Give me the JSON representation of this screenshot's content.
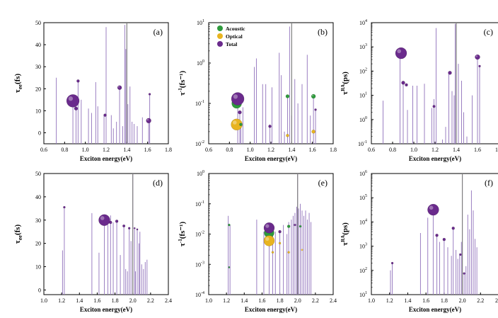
{
  "colors": {
    "stem": "#9b7fc2",
    "total": "#6a2a8c",
    "acoustic": "#2e9a3c",
    "optical": "#e8b420",
    "marker_line": "#808080"
  },
  "chart_data": [
    {
      "type": "scatter",
      "label": "(a)",
      "xlabel": "Exciton energy(eV)",
      "ylabel_main": "τ",
      "ylabel_sub": "ee",
      "ylabel_unit": "(fs)",
      "scale": "linear",
      "xlim": [
        0.6,
        1.8
      ],
      "xticks": [
        "0.6",
        "0.8",
        "1.0",
        "1.2",
        "1.4",
        "1.6",
        "1.8"
      ],
      "ylim": [
        -5,
        50
      ],
      "yticks": [
        "0",
        "10",
        "20",
        "30",
        "40",
        "50"
      ],
      "marker_line_x": 1.4,
      "stems": [
        [
          0.72,
          25
        ],
        [
          0.88,
          13
        ],
        [
          0.91,
          11
        ],
        [
          0.93,
          23
        ],
        [
          0.96,
          15
        ],
        [
          1.03,
          11
        ],
        [
          1.06,
          9
        ],
        [
          1.1,
          23
        ],
        [
          1.12,
          12
        ],
        [
          1.18,
          8
        ],
        [
          1.2,
          48
        ],
        [
          1.25,
          8
        ],
        [
          1.27,
          2
        ],
        [
          1.3,
          5
        ],
        [
          1.33,
          20
        ],
        [
          1.36,
          3
        ],
        [
          1.38,
          49
        ],
        [
          1.39,
          38
        ],
        [
          1.41,
          13
        ],
        [
          1.43,
          21
        ],
        [
          1.45,
          5
        ],
        [
          1.47,
          4
        ],
        [
          1.5,
          3
        ],
        [
          1.55,
          7
        ],
        [
          1.61,
          5
        ],
        [
          1.62,
          17
        ]
      ],
      "bubbles": [
        {
          "x": 0.88,
          "y": 14.5,
          "r": 9,
          "series": "total"
        },
        {
          "x": 0.91,
          "y": 11,
          "r": 2.5,
          "series": "total"
        },
        {
          "x": 0.93,
          "y": 23.5,
          "r": 2,
          "series": "total"
        },
        {
          "x": 1.19,
          "y": 8,
          "r": 2,
          "series": "total"
        },
        {
          "x": 1.33,
          "y": 20.5,
          "r": 3,
          "series": "total"
        },
        {
          "x": 1.61,
          "y": 5.5,
          "r": 3.5,
          "series": "total"
        },
        {
          "x": 1.62,
          "y": 17.5,
          "r": 1.5,
          "series": "total"
        }
      ]
    },
    {
      "type": "scatter",
      "label": "(b)",
      "xlabel": "Exciton energy(eV)",
      "ylabel_main": "τ",
      "ylabel_sup": "-1",
      "ylabel_unit": "(fs⁻¹)",
      "scale": "log",
      "xlim": [
        0.6,
        1.8
      ],
      "xticks": [
        "0.6",
        "0.8",
        "1.0",
        "1.2",
        "1.4",
        "1.6",
        "1.8"
      ],
      "ylim_exp": [
        -2,
        1
      ],
      "yticks": [
        {
          "e": -2,
          "t": "10"
        },
        {
          "e": -1,
          "t": "10"
        },
        {
          "e": 0,
          "t": "10"
        },
        {
          "e": 1,
          "t": "10"
        }
      ],
      "marker_line_x": 1.4,
      "legend": {
        "position": "top-left",
        "entries": [
          {
            "series": "acoustic",
            "label": "Acoustic"
          },
          {
            "series": "optical",
            "label": "Optical"
          },
          {
            "series": "total",
            "label": "Total"
          }
        ]
      },
      "stems": [
        [
          0.88,
          0.12
        ],
        [
          0.9,
          0.06
        ],
        [
          0.91,
          0.03
        ],
        [
          0.93,
          0.08
        ],
        [
          1.04,
          0.8
        ],
        [
          1.06,
          1.3
        ],
        [
          1.12,
          0.3
        ],
        [
          1.15,
          0.3
        ],
        [
          1.19,
          0.03
        ],
        [
          1.21,
          0.25
        ],
        [
          1.28,
          1.8
        ],
        [
          1.3,
          0.5
        ],
        [
          1.33,
          0.02
        ],
        [
          1.36,
          0.15
        ],
        [
          1.38,
          8
        ],
        [
          1.4,
          0.05
        ],
        [
          1.43,
          0.4
        ],
        [
          1.46,
          0.1
        ],
        [
          1.5,
          0.3
        ],
        [
          1.55,
          1.6
        ],
        [
          1.58,
          0.05
        ],
        [
          1.61,
          0.15
        ],
        [
          1.63,
          0.07
        ]
      ],
      "bubbles": [
        {
          "x": 0.87,
          "y": 0.1,
          "r": 7,
          "series": "acoustic"
        },
        {
          "x": 0.87,
          "y": 0.03,
          "r": 8,
          "series": "optical"
        },
        {
          "x": 0.88,
          "y": 0.13,
          "r": 9,
          "series": "total"
        },
        {
          "x": 0.9,
          "y": 0.06,
          "r": 2.5,
          "series": "total"
        },
        {
          "x": 0.91,
          "y": 0.03,
          "r": 2,
          "series": "acoustic"
        },
        {
          "x": 1.19,
          "y": 0.027,
          "r": 2,
          "series": "total"
        },
        {
          "x": 1.36,
          "y": 0.15,
          "r": 2.5,
          "series": "acoustic"
        },
        {
          "x": 1.36,
          "y": 0.016,
          "r": 2,
          "series": "optical"
        },
        {
          "x": 1.61,
          "y": 0.15,
          "r": 3,
          "series": "acoustic"
        },
        {
          "x": 1.61,
          "y": 0.02,
          "r": 2.5,
          "series": "optical"
        },
        {
          "x": 1.63,
          "y": 0.07,
          "r": 1.5,
          "series": "total"
        }
      ]
    },
    {
      "type": "scatter",
      "label": "(c)",
      "xlabel": "Exciton energy(eV)",
      "ylabel_main": "τ",
      "ylabel_sup": "RA",
      "ylabel_unit": "(ps)",
      "scale": "log",
      "xlim": [
        0.6,
        1.8
      ],
      "xticks": [
        "0.6",
        "0.8",
        "1.0",
        "1.2",
        "1.4",
        "1.6",
        "1.8"
      ],
      "ylim_exp": [
        -1,
        4
      ],
      "yticks": [
        {
          "e": -1,
          "t": "10"
        },
        {
          "e": 0,
          "t": "10"
        },
        {
          "e": 1,
          "t": "10"
        },
        {
          "e": 2,
          "t": "10"
        },
        {
          "e": 3,
          "t": "10"
        },
        {
          "e": 4,
          "t": "10"
        }
      ],
      "marker_line_x": 1.4,
      "stems": [
        [
          0.71,
          6
        ],
        [
          0.87,
          580
        ],
        [
          0.9,
          35
        ],
        [
          0.94,
          2.5
        ],
        [
          0.99,
          25
        ],
        [
          1.03,
          25
        ],
        [
          1.1,
          30
        ],
        [
          1.17,
          3
        ],
        [
          1.19,
          7
        ],
        [
          1.21,
          6000
        ],
        [
          1.27,
          0.15
        ],
        [
          1.3,
          0.5
        ],
        [
          1.33,
          90
        ],
        [
          1.36,
          15
        ],
        [
          1.38,
          10
        ],
        [
          1.39,
          9000
        ],
        [
          1.4,
          700
        ],
        [
          1.42,
          200
        ],
        [
          1.45,
          40
        ],
        [
          1.47,
          2
        ],
        [
          1.5,
          0.2
        ],
        [
          1.55,
          10
        ],
        [
          1.6,
          400
        ],
        [
          1.62,
          160
        ]
      ],
      "bubbles": [
        {
          "x": 0.88,
          "y": 550,
          "r": 8,
          "series": "total"
        },
        {
          "x": 0.9,
          "y": 33,
          "r": 2.5,
          "series": "total"
        },
        {
          "x": 0.93,
          "y": 27,
          "r": 2,
          "series": "total"
        },
        {
          "x": 1.19,
          "y": 3.5,
          "r": 1.8,
          "series": "total"
        },
        {
          "x": 1.34,
          "y": 85,
          "r": 2.5,
          "series": "total"
        },
        {
          "x": 1.6,
          "y": 380,
          "r": 3.5,
          "series": "total"
        },
        {
          "x": 1.62,
          "y": 160,
          "r": 1.5,
          "series": "total"
        }
      ]
    },
    {
      "type": "scatter",
      "label": "(d)",
      "xlabel": "Exciton energy(eV)",
      "ylabel_main": "τ",
      "ylabel_sub": "ee",
      "ylabel_unit": "(fs)",
      "scale": "linear",
      "xlim": [
        1.0,
        2.4
      ],
      "xticks": [
        "1.0",
        "1.2",
        "1.4",
        "1.6",
        "1.8",
        "2.0",
        "2.2",
        "2.4"
      ],
      "ylim": [
        -2,
        50
      ],
      "yticks": [
        "0",
        "10",
        "20",
        "30",
        "40",
        "50"
      ],
      "marker_line_x": 2.0,
      "stems": [
        [
          1.21,
          17
        ],
        [
          1.23,
          35
        ],
        [
          1.54,
          33
        ],
        [
          1.62,
          16
        ],
        [
          1.68,
          30
        ],
        [
          1.72,
          28
        ],
        [
          1.75,
          32
        ],
        [
          1.78,
          29
        ],
        [
          1.82,
          29
        ],
        [
          1.86,
          15
        ],
        [
          1.9,
          27
        ],
        [
          1.92,
          9
        ],
        [
          1.94,
          8
        ],
        [
          1.96,
          27
        ],
        [
          1.98,
          21
        ],
        [
          2.0,
          50
        ],
        [
          2.02,
          26
        ],
        [
          2.03,
          8
        ],
        [
          2.05,
          26
        ],
        [
          2.07,
          20
        ],
        [
          2.08,
          25
        ],
        [
          2.1,
          11
        ],
        [
          2.12,
          9
        ],
        [
          2.14,
          12
        ],
        [
          2.16,
          13
        ]
      ],
      "bubbles": [
        {
          "x": 1.23,
          "y": 35.5,
          "r": 1.5,
          "series": "total"
        },
        {
          "x": 1.68,
          "y": 30,
          "r": 8,
          "series": "total"
        },
        {
          "x": 1.75,
          "y": 29,
          "r": 2,
          "series": "total"
        },
        {
          "x": 1.82,
          "y": 29.5,
          "r": 2,
          "series": "total"
        },
        {
          "x": 1.9,
          "y": 27.5,
          "r": 1.8,
          "series": "total"
        },
        {
          "x": 1.96,
          "y": 26.5,
          "r": 1.5,
          "series": "total"
        },
        {
          "x": 2.02,
          "y": 26.5,
          "r": 1.2,
          "series": "total"
        },
        {
          "x": 2.05,
          "y": 26,
          "r": 1.2,
          "series": "total"
        }
      ]
    },
    {
      "type": "scatter",
      "label": "(e)",
      "xlabel": "Exciton energy(eV)",
      "ylabel_main": "τ",
      "ylabel_sup": "-1",
      "ylabel_unit": "(fs⁻¹)",
      "scale": "log",
      "xlim": [
        1.0,
        2.4
      ],
      "xticks": [
        "1.0",
        "1.2",
        "1.4",
        "1.6",
        "1.8",
        "2.0",
        "2.2",
        "2.4"
      ],
      "ylim_exp": [
        -4,
        0
      ],
      "yticks": [
        {
          "e": -4,
          "t": "10"
        },
        {
          "e": -3,
          "t": "10"
        },
        {
          "e": -2,
          "t": "10"
        },
        {
          "e": -1,
          "t": "10"
        },
        {
          "e": 0,
          "t": "10"
        }
      ],
      "marker_line_x": 2.0,
      "stems": [
        [
          1.22,
          0.04
        ],
        [
          1.24,
          0.02
        ],
        [
          1.54,
          0.03
        ],
        [
          1.62,
          0.012
        ],
        [
          1.68,
          0.015
        ],
        [
          1.72,
          0.02
        ],
        [
          1.75,
          0.012
        ],
        [
          1.8,
          0.013
        ],
        [
          1.84,
          0.02
        ],
        [
          1.88,
          0.01
        ],
        [
          1.9,
          0.025
        ],
        [
          1.93,
          0.03
        ],
        [
          1.95,
          0.04
        ],
        [
          1.97,
          0.05
        ],
        [
          1.99,
          0.08
        ],
        [
          2.0,
          1.0
        ],
        [
          2.01,
          0.07
        ],
        [
          2.03,
          0.1
        ],
        [
          2.05,
          0.06
        ],
        [
          2.07,
          0.04
        ],
        [
          2.09,
          0.06
        ],
        [
          2.11,
          0.03
        ],
        [
          2.13,
          0.05
        ],
        [
          2.15,
          0.025
        ]
      ],
      "bubbles": [
        {
          "x": 1.23,
          "y": 0.02,
          "r": 1.5,
          "series": "acoustic"
        },
        {
          "x": 1.23,
          "y": 0.0008,
          "r": 1.2,
          "series": "acoustic"
        },
        {
          "x": 1.68,
          "y": 0.011,
          "r": 7,
          "series": "acoustic"
        },
        {
          "x": 1.68,
          "y": 0.006,
          "r": 7.5,
          "series": "optical"
        },
        {
          "x": 1.68,
          "y": 0.016,
          "r": 7.5,
          "series": "total"
        },
        {
          "x": 1.72,
          "y": 0.0025,
          "r": 1.5,
          "series": "optical"
        },
        {
          "x": 1.8,
          "y": 0.012,
          "r": 2,
          "series": "total"
        },
        {
          "x": 1.8,
          "y": 0.005,
          "r": 1.5,
          "series": "optical"
        },
        {
          "x": 1.9,
          "y": 0.018,
          "r": 2,
          "series": "acoustic"
        },
        {
          "x": 1.9,
          "y": 0.0025,
          "r": 1.5,
          "series": "optical"
        },
        {
          "x": 1.97,
          "y": 0.02,
          "r": 1.5,
          "series": "total"
        },
        {
          "x": 2.03,
          "y": 0.018,
          "r": 1.5,
          "series": "acoustic"
        },
        {
          "x": 2.05,
          "y": 0.003,
          "r": 1.2,
          "series": "optical"
        }
      ]
    },
    {
      "type": "scatter",
      "label": "(f)",
      "xlabel": "Exciton energy(eV)",
      "ylabel_main": "τ",
      "ylabel_sup": "RA",
      "ylabel_unit": "(ps)",
      "scale": "log",
      "xlim": [
        1.0,
        2.4
      ],
      "xticks": [
        "1.0",
        "1.2",
        "1.4",
        "1.6",
        "1.8",
        "2.0",
        "2.2",
        "2.4"
      ],
      "ylim_exp": [
        1,
        6
      ],
      "yticks": [
        {
          "e": 1,
          "t": "10"
        },
        {
          "e": 2,
          "t": "10"
        },
        {
          "e": 3,
          "t": "10"
        },
        {
          "e": 4,
          "t": "10"
        },
        {
          "e": 5,
          "t": "10"
        },
        {
          "e": 6,
          "t": "10"
        }
      ],
      "marker_line_x": 2.0,
      "stems": [
        [
          1.21,
          100
        ],
        [
          1.23,
          200
        ],
        [
          1.54,
          3500
        ],
        [
          1.62,
          15000
        ],
        [
          1.68,
          30000
        ],
        [
          1.72,
          2800
        ],
        [
          1.75,
          1500
        ],
        [
          1.8,
          2000
        ],
        [
          1.84,
          900
        ],
        [
          1.88,
          400
        ],
        [
          1.9,
          5500
        ],
        [
          1.93,
          700
        ],
        [
          1.95,
          300
        ],
        [
          1.97,
          500
        ],
        [
          1.99,
          1500
        ],
        [
          2.0,
          900000
        ],
        [
          2.02,
          80
        ],
        [
          2.04,
          150
        ],
        [
          2.06,
          20000
        ],
        [
          2.08,
          5000
        ],
        [
          2.1,
          200000
        ],
        [
          2.12,
          30000
        ],
        [
          2.14,
          2000
        ],
        [
          2.16,
          900
        ]
      ],
      "bubbles": [
        {
          "x": 1.23,
          "y": 200,
          "r": 1.5,
          "series": "total"
        },
        {
          "x": 1.68,
          "y": 32000,
          "r": 8,
          "series": "total"
        },
        {
          "x": 1.72,
          "y": 2800,
          "r": 2,
          "series": "total"
        },
        {
          "x": 1.8,
          "y": 1900,
          "r": 2,
          "series": "total"
        },
        {
          "x": 1.9,
          "y": 5500,
          "r": 2,
          "series": "total"
        },
        {
          "x": 1.98,
          "y": 450,
          "r": 1.5,
          "series": "total"
        },
        {
          "x": 2.02,
          "y": 75,
          "r": 1.5,
          "series": "total"
        }
      ]
    }
  ]
}
